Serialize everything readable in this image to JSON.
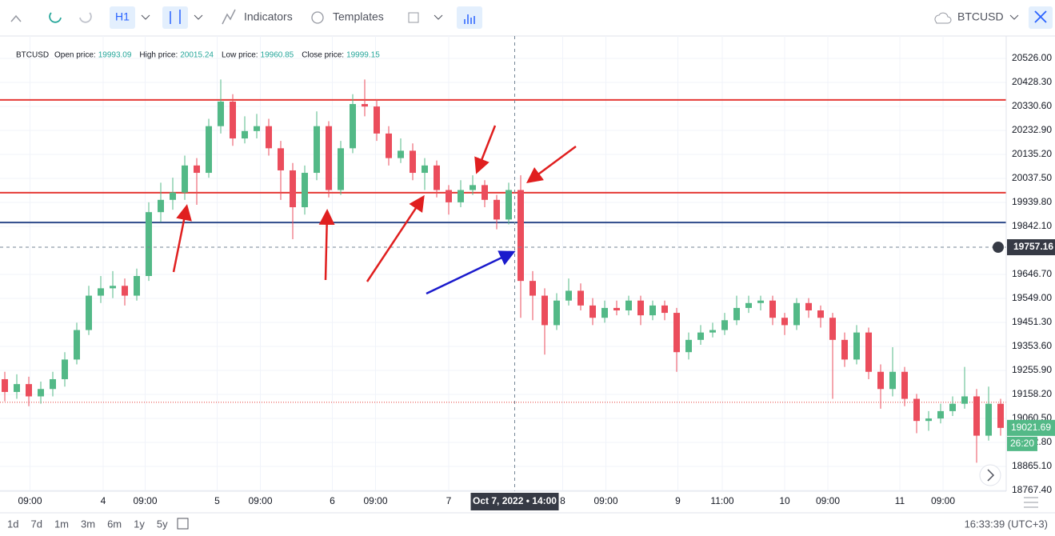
{
  "toolbar": {
    "interval": "H1",
    "indicators": "Indicators",
    "templates": "Templates",
    "symbol": "BTCUSD"
  },
  "info": {
    "symbol": "BTCUSD",
    "fields": [
      {
        "label": "Open price:",
        "value": 19993.09
      },
      {
        "label": "High price:",
        "value": 20015.24
      },
      {
        "label": "Low price:",
        "value": 19960.85
      },
      {
        "label": "Close price:",
        "value": 19999.15
      }
    ]
  },
  "chart_data": {
    "type": "candlestick",
    "up_color": "#53b987",
    "down_color": "#eb4d5c",
    "grid": true,
    "ylim": [
      18764,
      20617
    ],
    "yticks": [
      {
        "value": 20526,
        "label": "20526.00"
      },
      {
        "value": 20428.3,
        "label": "20428.30"
      },
      {
        "value": 20330.6,
        "label": "20330.60"
      },
      {
        "value": 20232.9,
        "label": "20232.90"
      },
      {
        "value": 20135.2,
        "label": "20135.20"
      },
      {
        "value": 20037.5,
        "label": "20037.50"
      },
      {
        "value": 19939.8,
        "label": "19939.80"
      },
      {
        "value": 19842.1,
        "label": "19842.10"
      },
      {
        "value": 19646.7,
        "label": "19646.70"
      },
      {
        "value": 19549,
        "label": "19549.00"
      },
      {
        "value": 19451.3,
        "label": "19451.30"
      },
      {
        "value": 19353.6,
        "label": "19353.60"
      },
      {
        "value": 19255.9,
        "label": "19255.90"
      },
      {
        "value": 19158.2,
        "label": "19158.20"
      },
      {
        "value": 19060.5,
        "label": "19060.50"
      },
      {
        "value": 18962.8,
        "label": "18962.80"
      },
      {
        "value": 18865.1,
        "label": "18865.10"
      },
      {
        "value": 18767.4,
        "label": "18767.40"
      }
    ],
    "xlim": [
      0,
      84
    ],
    "xticks": [
      {
        "value": 2.1,
        "label": "09:00"
      },
      {
        "value": 8.2,
        "label": "4"
      },
      {
        "value": 11.7,
        "label": "09:00"
      },
      {
        "value": 17.7,
        "label": "5"
      },
      {
        "value": 21.3,
        "label": "09:00"
      },
      {
        "value": 27.3,
        "label": "6"
      },
      {
        "value": 30.9,
        "label": "09:00"
      },
      {
        "value": 37,
        "label": "7"
      },
      {
        "value": 46.5,
        "label": "8"
      },
      {
        "value": 50.1,
        "label": "09:00"
      },
      {
        "value": 56.1,
        "label": "9"
      },
      {
        "value": 59.8,
        "label": "11:00"
      },
      {
        "value": 65,
        "label": "10"
      },
      {
        "value": 68.6,
        "label": "09:00"
      },
      {
        "value": 74.6,
        "label": "11"
      },
      {
        "value": 78.2,
        "label": "09:00"
      }
    ],
    "open": [
      19220,
      19168,
      19200,
      19150,
      19180,
      19220,
      19300,
      19420,
      19560,
      19590,
      19600,
      19560,
      19640,
      19900,
      19950,
      19980,
      20090,
      20060,
      20250,
      20350,
      20200,
      20230,
      20250,
      20160,
      20070,
      19920,
      20060,
      20250,
      19990,
      20160,
      20340,
      20330,
      20220,
      20120,
      20150,
      20060,
      20090,
      19990,
      19940,
      19990,
      20010,
      19950,
      19870,
      19990,
      19620,
      19560,
      19440,
      19540,
      19580,
      19520,
      19470,
      19510,
      19500,
      19540,
      19480,
      19520,
      19490,
      19330,
      19380,
      19410,
      19420,
      19460,
      19510,
      19530,
      19540,
      19470,
      19440,
      19530,
      19500,
      19470,
      19380,
      19300,
      19410,
      19250,
      19180,
      19250,
      19140,
      19050,
      19060,
      19090,
      19120,
      19150,
      18990,
      19120
    ],
    "high": [
      19250,
      19240,
      19230,
      19210,
      19250,
      19330,
      19450,
      19600,
      19640,
      19660,
      19630,
      19670,
      19940,
      20020,
      20040,
      20130,
      20120,
      20280,
      20440,
      20380,
      20290,
      20300,
      20280,
      20190,
      20100,
      20090,
      20310,
      20270,
      20190,
      20380,
      20440,
      20360,
      20250,
      20200,
      20180,
      20120,
      20110,
      20010,
      20030,
      20050,
      20030,
      19970,
      20020,
      20050,
      19660,
      19590,
      19570,
      19630,
      19610,
      19550,
      19540,
      19540,
      19560,
      19560,
      19540,
      19540,
      19510,
      19410,
      19440,
      19450,
      19490,
      19560,
      19560,
      19560,
      19560,
      19490,
      19550,
      19550,
      19520,
      19490,
      19410,
      19440,
      19430,
      19280,
      19350,
      19270,
      19160,
      19090,
      19120,
      19150,
      19270,
      19180,
      19190,
      19140
    ],
    "low": [
      19130,
      19140,
      19110,
      19120,
      19150,
      19190,
      19280,
      19400,
      19530,
      19550,
      19520,
      19540,
      19620,
      19860,
      19910,
      19950,
      19930,
      20040,
      20220,
      20170,
      20180,
      20200,
      20130,
      19950,
      19790,
      19890,
      20030,
      19960,
      19970,
      20140,
      20290,
      20190,
      20090,
      20100,
      20030,
      19990,
      19960,
      19890,
      19920,
      19970,
      19920,
      19830,
      19850,
      19470,
      19460,
      19320,
      19420,
      19520,
      19500,
      19440,
      19450,
      19480,
      19480,
      19440,
      19460,
      19460,
      19250,
      19300,
      19360,
      19390,
      19400,
      19440,
      19490,
      19500,
      19440,
      19400,
      19420,
      19470,
      19430,
      19140,
      19270,
      19280,
      19220,
      19100,
      19150,
      19110,
      19000,
      19010,
      19040,
      19070,
      19100,
      18880,
      18970,
      18990
    ],
    "close": [
      19168,
      19200,
      19150,
      19180,
      19220,
      19300,
      19420,
      19560,
      19590,
      19600,
      19560,
      19640,
      19900,
      19950,
      19980,
      20090,
      20060,
      20250,
      20350,
      20200,
      20230,
      20250,
      20160,
      20070,
      19920,
      20060,
      20250,
      19990,
      20160,
      20340,
      20330,
      20220,
      20120,
      20150,
      20060,
      20090,
      19990,
      19940,
      19990,
      20010,
      19950,
      19870,
      19990,
      19620,
      19560,
      19440,
      19540,
      19580,
      19520,
      19470,
      19510,
      19500,
      19540,
      19480,
      19520,
      19490,
      19330,
      19380,
      19410,
      19420,
      19460,
      19510,
      19530,
      19540,
      19470,
      19440,
      19530,
      19500,
      19470,
      19380,
      19300,
      19410,
      19250,
      19180,
      19250,
      19140,
      19050,
      19060,
      19090,
      19120,
      19150,
      18990,
      19120,
      19021.69
    ],
    "levels": [
      {
        "value": 20357,
        "color": "#e53935"
      },
      {
        "value": 19979,
        "color": "#e53935"
      },
      {
        "value": 19858,
        "color": "#2d4a8a"
      }
    ],
    "prev_close": {
      "value": 19126,
      "color": "#e53935"
    },
    "last_price": 19021.69,
    "countdown": "26:20",
    "crosshair": {
      "price": 19757.16,
      "index": 42.5,
      "time": "Oct 7, 2022 • 14:00"
    }
  },
  "ranges": [
    "1d",
    "7d",
    "1m",
    "3m",
    "6m",
    "1y",
    "5y"
  ],
  "clock": "16:33:39 (UTC+3)"
}
